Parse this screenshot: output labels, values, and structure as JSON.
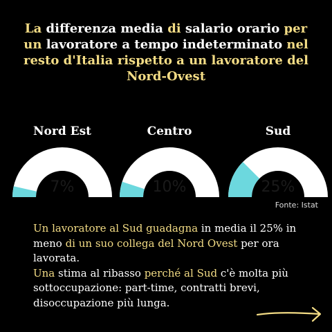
{
  "title_parts": [
    {
      "text": "La",
      "color": "y"
    },
    {
      "text": " differenza media ",
      "color": "w"
    },
    {
      "text": "di",
      "color": "y"
    },
    {
      "text": " salario orario ",
      "color": "w"
    },
    {
      "text": "per",
      "color": "y"
    },
    {
      "text": " ",
      "color": "w"
    },
    {
      "text": "un",
      "color": "y"
    },
    {
      "text": " lavoratore a tempo indeterminato ",
      "color": "w"
    },
    {
      "text": "nel",
      "color": "y"
    },
    {
      "text": " ",
      "color": "w"
    },
    {
      "text": "resto d'Italia rispetto a un lavoratore del",
      "color": "y"
    },
    {
      "text": " ",
      "color": "w"
    },
    {
      "text": "Nord-Ovest",
      "color": "y"
    }
  ],
  "chart_data": {
    "type": "gauge",
    "max": 100,
    "gauges": [
      {
        "region": "Nord Est",
        "value": 7,
        "label": "7%"
      },
      {
        "region": "Centro",
        "value": 10,
        "label": "10%"
      },
      {
        "region": "Sud",
        "value": 25,
        "label": "25%"
      }
    ],
    "colors": {
      "track": "#ffffff",
      "fill": "#6cd8de"
    }
  },
  "source": "Fonte: Istat",
  "body_parts": [
    {
      "text": "Un lavoratore al Sud guadagna",
      "color": "y"
    },
    {
      "text": " in media il 25% in meno ",
      "color": "w"
    },
    {
      "text": "di un suo collega del Nord Ovest",
      "color": "y"
    },
    {
      "text": " per ora lavorata.",
      "color": "w"
    },
    {
      "text": "\n",
      "color": "w"
    },
    {
      "text": "Una",
      "color": "y"
    },
    {
      "text": " stima al ribasso ",
      "color": "w"
    },
    {
      "text": "perché al Sud",
      "color": "y"
    },
    {
      "text": " c'è molta più sottoccupazione: part-time, contratti brevi, disoccupazione più lunga.",
      "color": "w"
    }
  ],
  "colors": {
    "yellow": "#f3dc85",
    "white": "#ffffff",
    "background": "#000000",
    "arrow": "#f3dc85"
  },
  "icons": {
    "next": "arrow-right-icon"
  }
}
